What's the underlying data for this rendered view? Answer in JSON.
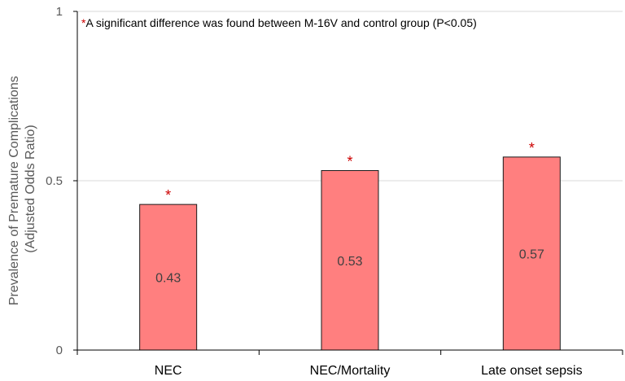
{
  "chart_data": {
    "type": "bar",
    "categories": [
      "NEC",
      "NEC/Mortality",
      "Late onset sepsis"
    ],
    "values": [
      0.43,
      0.53,
      0.57
    ],
    "value_labels": [
      "0.43",
      "0.53",
      "0.57"
    ],
    "ylabel_line1": "Prevalence of Premature Complications",
    "ylabel_line2": "(Adjusted Odds Ratio)",
    "ylim": [
      0,
      1
    ],
    "yticks": [
      0,
      0.5,
      1
    ],
    "ytick_labels": [
      "0",
      "0.5",
      "1"
    ],
    "grid": "horizontal",
    "significance_marker": "*",
    "significant": [
      true,
      true,
      true
    ],
    "annotation_marker": "*",
    "annotation_text": "A significant difference was found between M-16V and control group (P<0.05)",
    "colors": {
      "bar_fill": "#ff7f7f",
      "bar_stroke": "#1a1a1a",
      "marker": "#cc0000",
      "axis": "#000000",
      "grid": "#d9d9d9"
    }
  }
}
